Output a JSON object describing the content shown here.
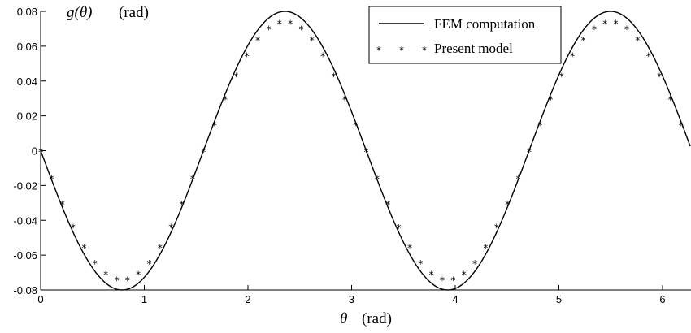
{
  "chart_data": {
    "type": "line",
    "ylabel_main": "g(θ)",
    "ylabel_unit": "(rad)",
    "xlabel_main": "θ",
    "xlabel_unit": "(rad)",
    "xlim": [
      0,
      6.2832
    ],
    "ylim": [
      -0.08,
      0.08
    ],
    "xticks": [
      "0",
      "1",
      "2",
      "3",
      "4",
      "5",
      "6"
    ],
    "yticks": [
      "0.08",
      "0.06",
      "0.04",
      "0.02",
      "0",
      "-0.02",
      "-0.04",
      "-0.06",
      "-0.08"
    ],
    "grid": false,
    "legend_position": "top-right",
    "series": [
      {
        "name": "FEM computation",
        "style": "solid line",
        "color": "#000000",
        "function": "-0.08*sin(2*x)",
        "x": [
          0,
          0.25,
          0.5,
          0.785,
          1.0,
          1.25,
          1.5,
          1.75,
          2.0,
          2.356,
          2.5,
          2.75,
          3.0,
          3.25,
          3.5,
          3.927,
          4.25,
          4.5,
          4.75,
          5.0,
          5.25,
          5.498,
          5.75,
          6.0,
          6.283
        ],
        "y": [
          0,
          -0.038,
          -0.067,
          -0.08,
          -0.073,
          -0.048,
          -0.011,
          0.028,
          0.061,
          0.08,
          0.077,
          0.056,
          0.022,
          -0.018,
          -0.053,
          -0.08,
          -0.064,
          -0.033,
          0.006,
          0.044,
          0.072,
          0.08,
          0.069,
          0.043,
          0
        ]
      },
      {
        "name": "Present model",
        "style": "asterisk markers",
        "color": "#000000",
        "function": "-0.074*sin(2*x)",
        "marker_count": 60
      }
    ]
  },
  "legend": {
    "items": [
      "FEM computation",
      "Present model"
    ]
  }
}
